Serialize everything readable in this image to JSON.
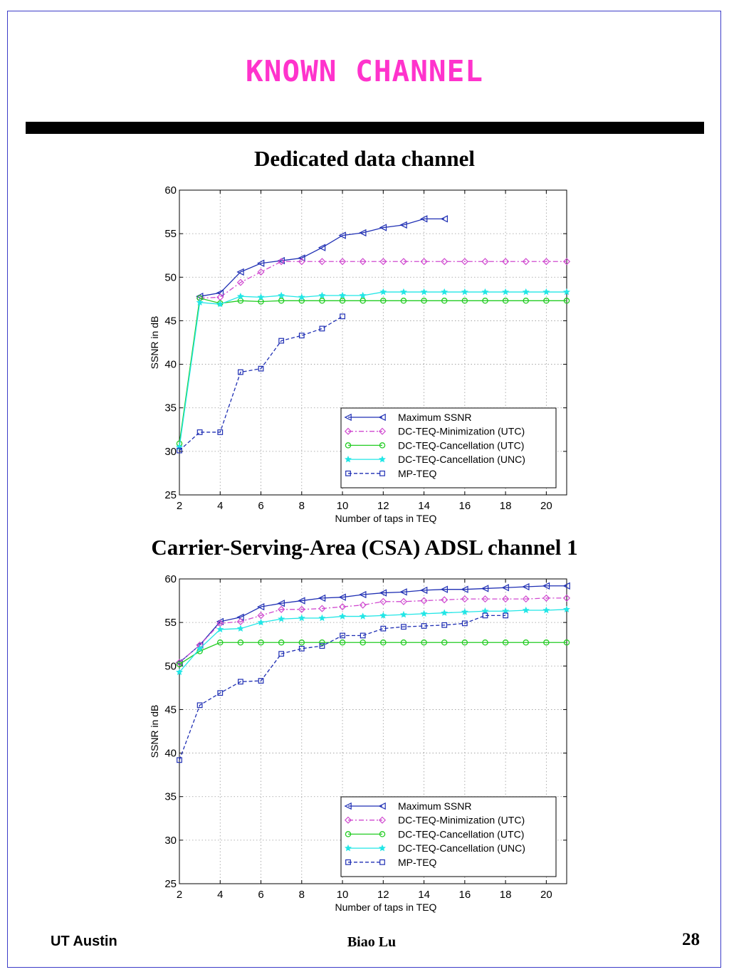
{
  "slide": {
    "title": "KNOWN CHANNEL",
    "title_color": "#ff33cc",
    "footer_left": "UT Austin",
    "footer_center": "Biao Lu",
    "page_number": "28"
  },
  "chart_data": [
    {
      "type": "line",
      "title": "Dedicated data channel",
      "xlabel": "Number of taps in TEQ",
      "ylabel": "SSNR in dB",
      "xlim": [
        2,
        21
      ],
      "ylim": [
        25,
        60
      ],
      "xticks": [
        2,
        4,
        6,
        8,
        10,
        12,
        14,
        16,
        18,
        20
      ],
      "yticks": [
        25,
        30,
        35,
        40,
        45,
        50,
        55,
        60
      ],
      "grid": true,
      "legend_position": "bottom-right",
      "series": [
        {
          "name": "Maximum SSNR",
          "color": "#1f2fb4",
          "dash": "solid",
          "marker": "triangle-left",
          "x": [
            3,
            4,
            5,
            6,
            7,
            8,
            9,
            10,
            11,
            12,
            13,
            14,
            15
          ],
          "y": [
            47.8,
            48.2,
            50.6,
            51.6,
            51.9,
            52.2,
            53.4,
            54.8,
            55.1,
            55.7,
            56.0,
            56.7,
            56.7
          ]
        },
        {
          "name": "DC-TEQ-Minimization (UTC)",
          "color": "#d04ad0",
          "dash": "dashdot",
          "marker": "diamond",
          "x": [
            3,
            4,
            5,
            6,
            7,
            8,
            9,
            10,
            11,
            12,
            13,
            14,
            15,
            16,
            17,
            18,
            19,
            20,
            21
          ],
          "y": [
            47.6,
            47.7,
            49.4,
            50.6,
            51.8,
            51.8,
            51.8,
            51.8,
            51.8,
            51.8,
            51.8,
            51.8,
            51.8,
            51.8,
            51.8,
            51.8,
            51.8,
            51.8,
            51.8
          ]
        },
        {
          "name": "DC-TEQ-Cancellation (UTC)",
          "color": "#22cc22",
          "dash": "solid",
          "marker": "circle",
          "x": [
            2,
            3,
            4,
            5,
            6,
            7,
            8,
            9,
            10,
            11,
            12,
            13,
            14,
            15,
            16,
            17,
            18,
            19,
            20,
            21
          ],
          "y": [
            30.9,
            47.6,
            47.0,
            47.3,
            47.2,
            47.3,
            47.3,
            47.3,
            47.3,
            47.3,
            47.3,
            47.3,
            47.3,
            47.3,
            47.3,
            47.3,
            47.3,
            47.3,
            47.3,
            47.3
          ]
        },
        {
          "name": "DC-TEQ-Cancellation (UNC)",
          "color": "#22e6e6",
          "dash": "solid",
          "marker": "star",
          "x": [
            2,
            3,
            4,
            5,
            6,
            7,
            8,
            9,
            10,
            11,
            12,
            13,
            14,
            15,
            16,
            17,
            18,
            19,
            20,
            21
          ],
          "y": [
            30.5,
            47.1,
            46.9,
            47.8,
            47.7,
            47.9,
            47.7,
            47.9,
            47.9,
            47.9,
            48.3,
            48.3,
            48.3,
            48.3,
            48.3,
            48.3,
            48.3,
            48.3,
            48.3,
            48.3
          ]
        },
        {
          "name": "MP-TEQ",
          "color": "#1f2fb4",
          "dash": "dashed",
          "marker": "square",
          "x": [
            2,
            3,
            4,
            5,
            6,
            7,
            8,
            9,
            10
          ],
          "y": [
            30.1,
            32.2,
            32.2,
            39.1,
            39.5,
            42.7,
            43.3,
            44.1,
            45.5
          ]
        }
      ]
    },
    {
      "type": "line",
      "title": "Carrier-Serving-Area (CSA) ADSL channel 1",
      "xlabel": "Number of taps in TEQ",
      "ylabel": "SSNR in dB",
      "xlim": [
        2,
        21
      ],
      "ylim": [
        25,
        60
      ],
      "xticks": [
        2,
        4,
        6,
        8,
        10,
        12,
        14,
        16,
        18,
        20
      ],
      "yticks": [
        25,
        30,
        35,
        40,
        45,
        50,
        55,
        60
      ],
      "grid": true,
      "legend_position": "bottom-right",
      "series": [
        {
          "name": "Maximum SSNR",
          "color": "#1f2fb4",
          "dash": "solid",
          "marker": "triangle-left",
          "x": [
            2,
            3,
            4,
            5,
            6,
            7,
            8,
            9,
            10,
            11,
            12,
            13,
            14,
            15,
            16,
            17,
            18,
            19,
            20,
            21
          ],
          "y": [
            50.4,
            52.4,
            55.1,
            55.6,
            56.8,
            57.2,
            57.5,
            57.8,
            57.9,
            58.2,
            58.4,
            58.5,
            58.7,
            58.8,
            58.8,
            58.9,
            59.0,
            59.1,
            59.2,
            59.2
          ]
        },
        {
          "name": "DC-TEQ-Minimization (UTC)",
          "color": "#d04ad0",
          "dash": "dashdot",
          "marker": "diamond",
          "x": [
            2,
            3,
            4,
            5,
            6,
            7,
            8,
            9,
            10,
            11,
            12,
            13,
            14,
            15,
            16,
            17,
            18,
            19,
            20,
            21
          ],
          "y": [
            50.4,
            52.4,
            54.9,
            55.1,
            55.8,
            56.5,
            56.5,
            56.6,
            56.8,
            57.0,
            57.4,
            57.4,
            57.5,
            57.6,
            57.7,
            57.7,
            57.7,
            57.7,
            57.8,
            57.8
          ]
        },
        {
          "name": "DC-TEQ-Cancellation (UTC)",
          "color": "#22cc22",
          "dash": "solid",
          "marker": "circle",
          "x": [
            2,
            3,
            4,
            5,
            6,
            7,
            8,
            9,
            10,
            11,
            12,
            13,
            14,
            15,
            16,
            17,
            18,
            19,
            20,
            21
          ],
          "y": [
            50.2,
            51.7,
            52.7,
            52.7,
            52.7,
            52.7,
            52.7,
            52.7,
            52.7,
            52.7,
            52.7,
            52.7,
            52.7,
            52.7,
            52.7,
            52.7,
            52.7,
            52.7,
            52.7,
            52.7
          ]
        },
        {
          "name": "DC-TEQ-Cancellation (UNC)",
          "color": "#22e6e6",
          "dash": "solid",
          "marker": "star",
          "x": [
            2,
            3,
            4,
            5,
            6,
            7,
            8,
            9,
            10,
            11,
            12,
            13,
            14,
            15,
            16,
            17,
            18,
            19,
            20,
            21
          ],
          "y": [
            49.3,
            52.0,
            54.2,
            54.3,
            55.0,
            55.4,
            55.5,
            55.5,
            55.7,
            55.7,
            55.8,
            55.9,
            56.0,
            56.1,
            56.2,
            56.3,
            56.3,
            56.4,
            56.4,
            56.5
          ]
        },
        {
          "name": "MP-TEQ",
          "color": "#1f2fb4",
          "dash": "dashed",
          "marker": "square",
          "x": [
            2,
            3,
            4,
            5,
            6,
            7,
            8,
            9,
            10,
            11,
            12,
            13,
            14,
            15,
            16,
            17,
            18
          ],
          "y": [
            39.2,
            45.5,
            46.9,
            48.2,
            48.3,
            51.4,
            52.0,
            52.3,
            53.5,
            53.5,
            54.3,
            54.5,
            54.6,
            54.7,
            54.9,
            55.8,
            55.8
          ]
        }
      ]
    }
  ]
}
